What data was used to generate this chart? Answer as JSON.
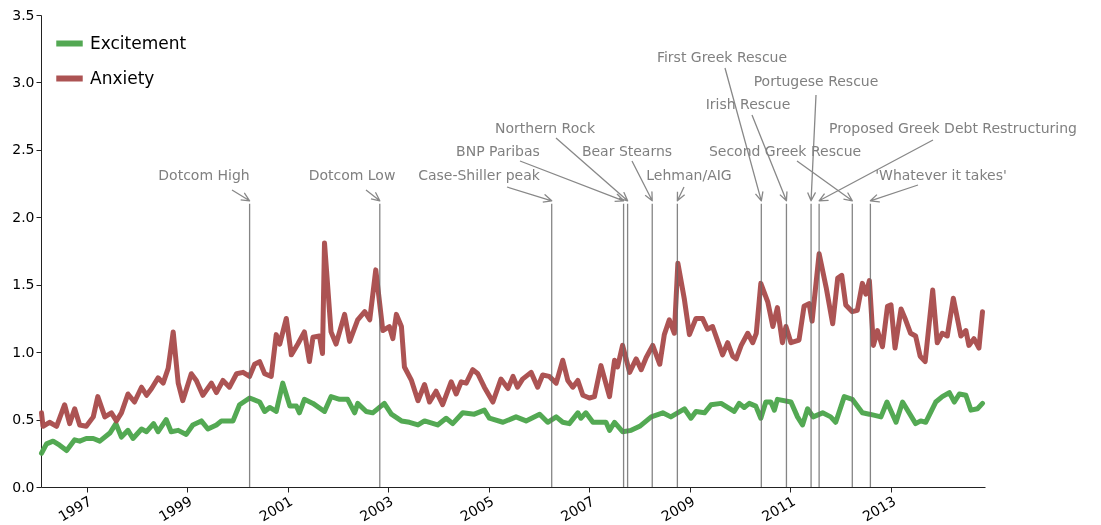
{
  "chart_data": {
    "type": "line",
    "xlim": [
      1996.09,
      2014.87
    ],
    "xticks": [
      1997,
      1999,
      2001,
      2003,
      2005,
      2007,
      2009,
      2011,
      2013
    ],
    "ylim": [
      0,
      3.5
    ],
    "yticks": [
      {
        "value": 0,
        "label": "0.0"
      },
      {
        "value": 0.5,
        "label": "0.5"
      },
      {
        "value": 1,
        "label": "1.0"
      },
      {
        "value": 1.5,
        "label": "1.5"
      },
      {
        "value": 2,
        "label": "2.0"
      },
      {
        "value": 2.5,
        "label": "2.5"
      },
      {
        "value": 3,
        "label": "3.0"
      },
      {
        "value": 3.5,
        "label": "3.5"
      }
    ],
    "legend": "top left",
    "series": [
      {
        "name": "Excitement",
        "color": "#4aa44a",
        "x": [
          1996.1,
          1996.2,
          1996.33,
          1996.46,
          1996.6,
          1996.76,
          1996.86,
          1996.99,
          1997.13,
          1997.26,
          1997.46,
          1997.58,
          1997.69,
          1997.82,
          1997.92,
          1998.09,
          1998.19,
          1998.33,
          1998.42,
          1998.58,
          1998.68,
          1998.82,
          1998.98,
          1999.11,
          1999.28,
          1999.41,
          1999.58,
          1999.68,
          1999.91,
          2000.04,
          2000.24,
          2000.44,
          2000.54,
          2000.64,
          2000.77,
          2000.9,
          2001.04,
          2001.17,
          2001.23,
          2001.33,
          2001.5,
          2001.73,
          2001.86,
          2002.03,
          2002.19,
          2002.33,
          2002.39,
          2002.56,
          2002.69,
          2002.92,
          2003.06,
          2003.26,
          2003.42,
          2003.59,
          2003.72,
          2003.98,
          2004.15,
          2004.28,
          2004.48,
          2004.71,
          2004.91,
          2005.01,
          2005.28,
          2005.54,
          2005.74,
          2006.01,
          2006.17,
          2006.34,
          2006.47,
          2006.6,
          2006.77,
          2006.83,
          2006.93,
          2007.07,
          2007.33,
          2007.4,
          2007.5,
          2007.66,
          2007.83,
          2008.0,
          2008.23,
          2008.46,
          2008.62,
          2008.89,
          2009.02,
          2009.12,
          2009.29,
          2009.42,
          2009.62,
          2009.88,
          2009.98,
          2010.08,
          2010.18,
          2010.31,
          2010.41,
          2010.51,
          2010.61,
          2010.68,
          2010.74,
          2011.01,
          2011.14,
          2011.24,
          2011.34,
          2011.45,
          2011.64,
          2011.8,
          2011.9,
          2012.07,
          2012.23,
          2012.43,
          2012.57,
          2012.8,
          2012.92,
          2013.1,
          2013.23,
          2013.49,
          2013.59,
          2013.69,
          2013.89,
          2014.02,
          2014.16,
          2014.26,
          2014.36,
          2014.49,
          2014.59,
          2014.72,
          2014.82
        ],
        "values": [
          0.25,
          0.32,
          0.34,
          0.31,
          0.27,
          0.35,
          0.34,
          0.36,
          0.36,
          0.34,
          0.4,
          0.47,
          0.37,
          0.42,
          0.36,
          0.43,
          0.41,
          0.47,
          0.41,
          0.5,
          0.41,
          0.42,
          0.39,
          0.46,
          0.49,
          0.43,
          0.46,
          0.49,
          0.49,
          0.61,
          0.66,
          0.63,
          0.56,
          0.59,
          0.56,
          0.77,
          0.6,
          0.6,
          0.55,
          0.65,
          0.62,
          0.56,
          0.67,
          0.65,
          0.65,
          0.55,
          0.62,
          0.56,
          0.55,
          0.62,
          0.54,
          0.49,
          0.48,
          0.46,
          0.49,
          0.46,
          0.51,
          0.47,
          0.55,
          0.54,
          0.57,
          0.51,
          0.48,
          0.52,
          0.49,
          0.54,
          0.48,
          0.52,
          0.48,
          0.47,
          0.55,
          0.51,
          0.55,
          0.48,
          0.48,
          0.42,
          0.48,
          0.41,
          0.42,
          0.45,
          0.52,
          0.55,
          0.52,
          0.58,
          0.51,
          0.56,
          0.55,
          0.61,
          0.62,
          0.56,
          0.62,
          0.59,
          0.62,
          0.6,
          0.51,
          0.63,
          0.63,
          0.57,
          0.65,
          0.63,
          0.52,
          0.46,
          0.58,
          0.52,
          0.55,
          0.52,
          0.48,
          0.67,
          0.65,
          0.55,
          0.54,
          0.52,
          0.63,
          0.48,
          0.63,
          0.47,
          0.49,
          0.48,
          0.63,
          0.67,
          0.7,
          0.63,
          0.69,
          0.68,
          0.57,
          0.58,
          0.62
        ]
      },
      {
        "name": "Anxiety",
        "color": "#a84a4a",
        "x": [
          1996.1,
          1996.13,
          1996.26,
          1996.4,
          1996.56,
          1996.66,
          1996.76,
          1996.86,
          1996.99,
          1997.13,
          1997.22,
          1997.36,
          1997.49,
          1997.59,
          1997.69,
          1997.82,
          1997.95,
          1998.09,
          1998.19,
          1998.29,
          1998.42,
          1998.52,
          1998.62,
          1998.72,
          1998.82,
          1998.91,
          1999.08,
          1999.18,
          1999.31,
          1999.48,
          1999.58,
          1999.71,
          1999.84,
          1999.98,
          2000.11,
          2000.24,
          2000.34,
          2000.44,
          2000.54,
          2000.67,
          2000.77,
          2000.84,
          2000.97,
          2001.07,
          2001.2,
          2001.33,
          2001.43,
          2001.5,
          2001.63,
          2001.69,
          2001.73,
          2001.86,
          2001.96,
          2002.13,
          2002.23,
          2002.39,
          2002.53,
          2002.63,
          2002.75,
          2002.89,
          2003.02,
          2003.09,
          2003.16,
          2003.26,
          2003.32,
          2003.46,
          2003.59,
          2003.72,
          2003.82,
          2003.95,
          2004.08,
          2004.25,
          2004.35,
          2004.45,
          2004.55,
          2004.68,
          2004.78,
          2004.91,
          2005.08,
          2005.24,
          2005.38,
          2005.48,
          2005.57,
          2005.67,
          2005.84,
          2005.97,
          2006.07,
          2006.2,
          2006.34,
          2006.47,
          2006.57,
          2006.67,
          2006.77,
          2006.87,
          2007.0,
          2007.1,
          2007.23,
          2007.4,
          2007.5,
          2007.56,
          2007.66,
          2007.8,
          2007.93,
          2008.03,
          2008.13,
          2008.26,
          2008.4,
          2008.49,
          2008.59,
          2008.69,
          2008.76,
          2008.89,
          2008.99,
          2009.12,
          2009.25,
          2009.35,
          2009.45,
          2009.65,
          2009.75,
          2009.85,
          2009.92,
          2010.02,
          2010.15,
          2010.25,
          2010.32,
          2010.41,
          2010.55,
          2010.65,
          2010.74,
          2010.84,
          2010.91,
          2011.01,
          2011.17,
          2011.27,
          2011.37,
          2011.43,
          2011.57,
          2011.71,
          2011.84,
          2011.94,
          2012.02,
          2012.1,
          2012.23,
          2012.33,
          2012.43,
          2012.5,
          2012.57,
          2012.65,
          2012.73,
          2012.83,
          2012.93,
          2013.0,
          2013.08,
          2013.2,
          2013.29,
          2013.39,
          2013.49,
          2013.58,
          2013.68,
          2013.83,
          2013.92,
          2014.02,
          2014.12,
          2014.24,
          2014.39,
          2014.49,
          2014.55,
          2014.65,
          2014.75,
          2014.82
        ],
        "values": [
          0.55,
          0.45,
          0.48,
          0.45,
          0.61,
          0.47,
          0.58,
          0.46,
          0.45,
          0.52,
          0.67,
          0.52,
          0.55,
          0.49,
          0.55,
          0.69,
          0.63,
          0.74,
          0.68,
          0.73,
          0.81,
          0.77,
          0.88,
          1.15,
          0.77,
          0.64,
          0.84,
          0.79,
          0.68,
          0.77,
          0.7,
          0.79,
          0.74,
          0.84,
          0.85,
          0.82,
          0.91,
          0.93,
          0.84,
          0.82,
          1.13,
          1.06,
          1.25,
          0.98,
          1.06,
          1.15,
          0.93,
          1.11,
          1.12,
          0.99,
          1.81,
          1.15,
          1.06,
          1.28,
          1.08,
          1.24,
          1.3,
          1.24,
          1.61,
          1.16,
          1.19,
          1.1,
          1.28,
          1.19,
          0.89,
          0.79,
          0.64,
          0.76,
          0.63,
          0.71,
          0.61,
          0.78,
          0.69,
          0.78,
          0.77,
          0.87,
          0.84,
          0.74,
          0.63,
          0.8,
          0.73,
          0.82,
          0.74,
          0.8,
          0.85,
          0.74,
          0.83,
          0.82,
          0.77,
          0.94,
          0.79,
          0.74,
          0.79,
          0.68,
          0.66,
          0.67,
          0.9,
          0.67,
          0.94,
          0.89,
          1.05,
          0.85,
          0.95,
          0.87,
          0.96,
          1.05,
          0.91,
          1.13,
          1.24,
          1.14,
          1.66,
          1.39,
          1.13,
          1.25,
          1.25,
          1.17,
          1.19,
          0.98,
          1.07,
          0.97,
          0.95,
          1.05,
          1.14,
          1.07,
          1.14,
          1.51,
          1.37,
          1.19,
          1.33,
          1.07,
          1.19,
          1.07,
          1.09,
          1.34,
          1.36,
          1.23,
          1.73,
          1.48,
          1.21,
          1.55,
          1.57,
          1.35,
          1.3,
          1.31,
          1.51,
          1.43,
          1.53,
          1.05,
          1.16,
          1.04,
          1.34,
          1.35,
          1.03,
          1.32,
          1.24,
          1.14,
          1.12,
          0.97,
          0.93,
          1.46,
          1.07,
          1.14,
          1.12,
          1.4,
          1.12,
          1.16,
          1.05,
          1.1,
          1.03,
          1.3
        ]
      }
    ],
    "ref_lines": [
      {
        "axis": "x",
        "value": 2000.24,
        "color": "#666666"
      },
      {
        "axis": "x",
        "value": 2002.83,
        "color": "#666666"
      },
      {
        "axis": "x",
        "value": 2006.25,
        "color": "#666666"
      },
      {
        "axis": "x",
        "value": 2007.68,
        "color": "#666666"
      },
      {
        "axis": "x",
        "value": 2007.76,
        "color": "#666666"
      },
      {
        "axis": "x",
        "value": 2008.25,
        "color": "#666666"
      },
      {
        "axis": "x",
        "value": 2008.75,
        "color": "#666666"
      },
      {
        "axis": "x",
        "value": 2010.42,
        "color": "#666666"
      },
      {
        "axis": "x",
        "value": 2010.92,
        "color": "#666666"
      },
      {
        "axis": "x",
        "value": 2011.41,
        "color": "#666666"
      },
      {
        "axis": "x",
        "value": 2011.57,
        "color": "#666666"
      },
      {
        "axis": "x",
        "value": 2012.23,
        "color": "#666666"
      },
      {
        "axis": "x",
        "value": 2012.59,
        "color": "#666666"
      }
    ],
    "annotations": [
      "Dotcom High",
      "Dotcom Low",
      "Case-Shiller peak",
      "BNP Paribas",
      "Northern Rock",
      "Bear Stearns",
      "Lehman/AIG",
      "First Greek Rescue",
      "Irish Rescue",
      "Portugese Rescue",
      "Proposed Greek Debt Restructuring",
      "Second Greek Rescue",
      "'Whatever it takes'"
    ]
  }
}
